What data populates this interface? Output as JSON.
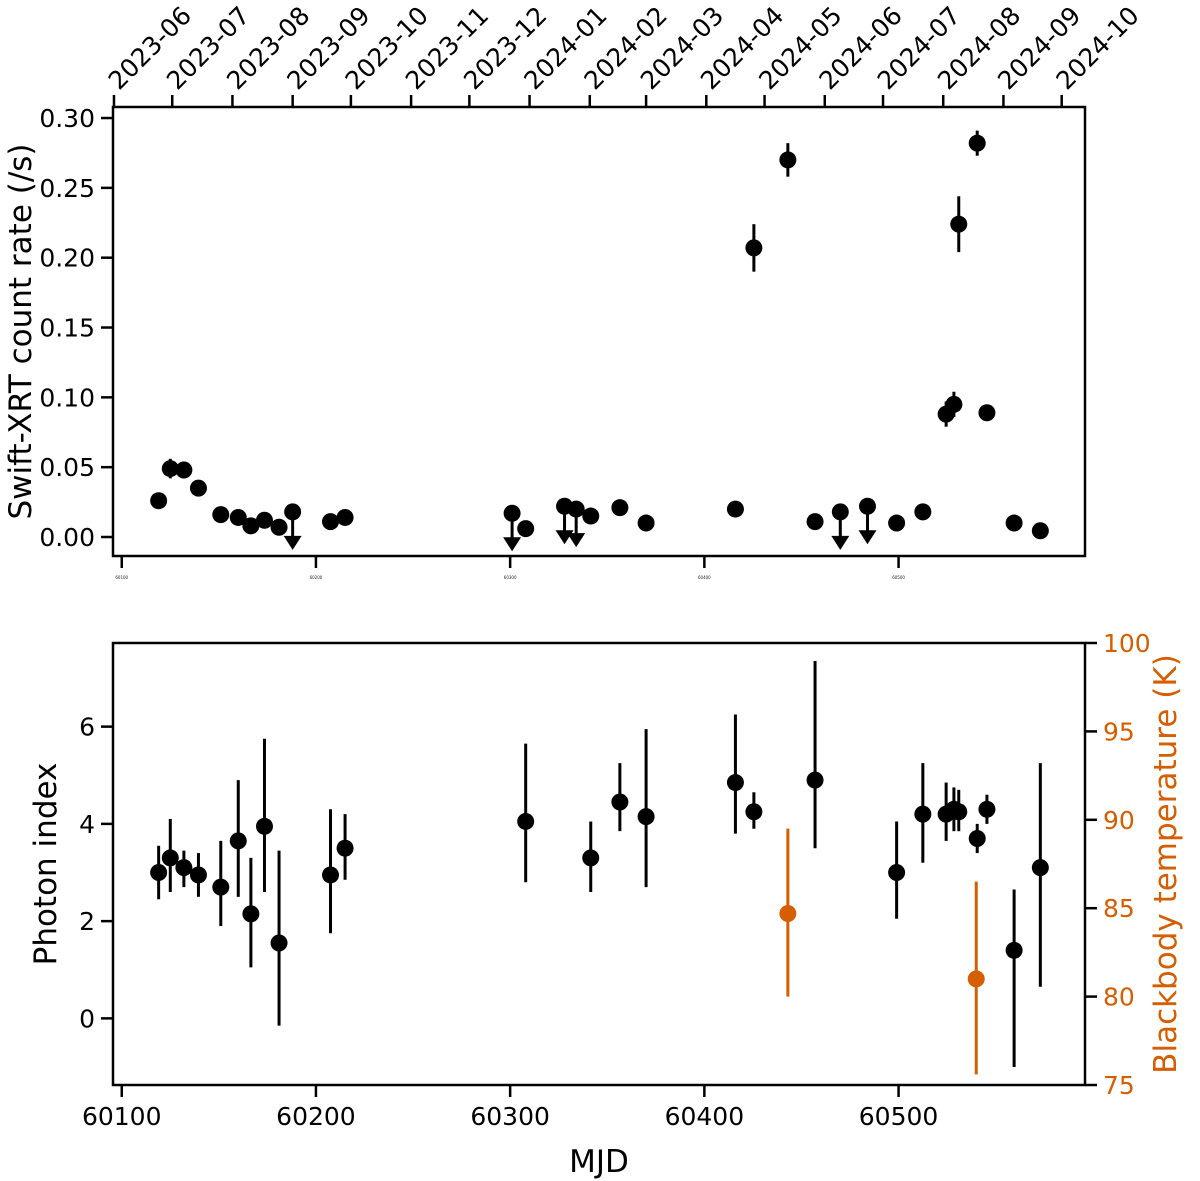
{
  "figure": {
    "background_color": "#ffffff",
    "accent_color": "#d55e00",
    "description": "Two-panel X-ray light curve and spectral evolution plot versus MJD"
  },
  "chart_data": [
    {
      "id": "count-rate-panel",
      "type": "scatter",
      "title": "",
      "ylabel": "Swift-XRT count rate (/s)",
      "grid": false,
      "xlim": [
        60095.5,
        60596
      ],
      "ylim": [
        -0.0136,
        0.3079
      ],
      "yticks": [
        0.0,
        0.05,
        0.1,
        0.15,
        0.2,
        0.25,
        0.3
      ],
      "ytick_labels": [
        "0.00",
        "0.05",
        "0.10",
        "0.15",
        "0.20",
        "0.25",
        "0.30"
      ],
      "xticks_bottom": [
        60100,
        60200,
        60300,
        60400,
        60500
      ],
      "xticks_bottom_tiny_labels": [
        "60100",
        "60200",
        "60300",
        "60400",
        "60500"
      ],
      "xticks_top": {
        "mjd": [
          60096,
          60126,
          60157,
          60188,
          60218,
          60249,
          60279,
          60310,
          60341,
          60370,
          60401,
          60431,
          60462,
          60492,
          60523,
          60554,
          60584
        ],
        "labels": [
          "2023-06",
          "2023-07",
          "2023-08",
          "2023-09",
          "2023-10",
          "2023-11",
          "2023-12",
          "2024-01",
          "2024-02",
          "2024-03",
          "2024-04",
          "2024-05",
          "2024-06",
          "2024-07",
          "2024-08",
          "2024-09",
          "2024-10"
        ]
      },
      "series": [
        {
          "name": "detections",
          "marker": "circle",
          "color": "#000000",
          "x": [
            60119,
            60125,
            60132,
            60139.5,
            60151,
            60160,
            60166.5,
            60173.5,
            60181,
            60207.5,
            60215,
            60308,
            60341.5,
            60356.5,
            60370,
            60416,
            60425.5,
            60443,
            60457,
            60499,
            60512.5,
            60524.5,
            60528.5,
            60531,
            60540.5,
            60545.5,
            60559.5,
            60573
          ],
          "y": [
            0.026,
            0.049,
            0.048,
            0.035,
            0.016,
            0.014,
            0.008,
            0.012,
            0.007,
            0.011,
            0.014,
            0.006,
            0.015,
            0.021,
            0.01,
            0.02,
            0.207,
            0.27,
            0.011,
            0.01,
            0.018,
            0.088,
            0.095,
            0.224,
            0.282,
            0.089,
            0.01,
            0.0045
          ],
          "yerr": [
            0.004,
            0.007,
            0.006,
            0.005,
            0.003,
            0.003,
            0.002,
            0.003,
            0.002,
            0.002,
            0.003,
            0.002,
            0.003,
            0.003,
            0.002,
            0.003,
            0.017,
            0.012,
            0.002,
            0.002,
            0.003,
            0.009,
            0.009,
            0.02,
            0.009,
            0.005,
            0.002,
            0.002
          ]
        },
        {
          "name": "upper-limits",
          "marker": "circle-down-arrow",
          "color": "#000000",
          "x": [
            60188,
            60301,
            60328,
            60334,
            60470,
            60484
          ],
          "y": [
            0.018,
            0.017,
            0.022,
            0.02,
            0.018,
            0.022
          ]
        }
      ]
    },
    {
      "id": "spectral-panel",
      "type": "scatter",
      "title": "",
      "xlabel": "MJD",
      "ylabel_left": "Photon index",
      "ylabel_right": "Blackbody temperature (K)",
      "right_axis_color": "#d55e00",
      "grid": false,
      "xlim": [
        60095.5,
        60596
      ],
      "ylim_left": [
        -1.37,
        7.72
      ],
      "ylim_right": [
        75,
        100
      ],
      "yticks_left": [
        0,
        2,
        4,
        6
      ],
      "ytick_labels_left": [
        "0",
        "2",
        "4",
        "6"
      ],
      "yticks_right": [
        75,
        80,
        85,
        90,
        95,
        100
      ],
      "ytick_labels_right": [
        "75",
        "80",
        "85",
        "90",
        "95",
        "100"
      ],
      "xticks_bottom": [
        60100,
        60200,
        60300,
        60400,
        60500
      ],
      "xtick_labels_bottom": [
        "60100",
        "60200",
        "60300",
        "60400",
        "60500"
      ],
      "series": [
        {
          "name": "photon-index",
          "axis": "left",
          "marker": "circle",
          "color": "#000000",
          "x": [
            60119,
            60125,
            60132,
            60139.5,
            60151,
            60160,
            60166.5,
            60173.5,
            60181,
            60207.5,
            60215,
            60308,
            60341.5,
            60356.5,
            60370,
            60416,
            60425.5,
            60457,
            60499,
            60512.5,
            60524.5,
            60528.5,
            60531,
            60540.5,
            60545.5,
            60559.5,
            60573
          ],
          "y": [
            3.0,
            3.3,
            3.1,
            2.95,
            2.7,
            3.65,
            2.15,
            3.95,
            1.55,
            2.95,
            3.5,
            4.05,
            3.3,
            4.45,
            4.15,
            4.85,
            4.25,
            4.9,
            3.0,
            4.2,
            4.2,
            4.3,
            4.25,
            3.7,
            4.3,
            1.4,
            3.1
          ],
          "yerr_plus": [
            0.55,
            0.8,
            0.35,
            0.45,
            0.95,
            1.25,
            1.15,
            1.8,
            1.9,
            1.35,
            0.7,
            1.6,
            0.75,
            0.8,
            1.8,
            1.4,
            0.4,
            2.45,
            1.05,
            1.05,
            0.65,
            0.45,
            0.45,
            0.3,
            0.3,
            1.25,
            2.15
          ],
          "yerr_minus": [
            0.55,
            0.7,
            0.4,
            0.45,
            0.8,
            1.15,
            1.1,
            1.35,
            1.7,
            1.2,
            0.65,
            1.25,
            0.7,
            0.6,
            1.45,
            1.05,
            0.35,
            1.4,
            0.95,
            1.0,
            0.55,
            0.45,
            0.4,
            0.3,
            0.3,
            2.4,
            2.45
          ]
        },
        {
          "name": "blackbody-temperature",
          "axis": "right",
          "marker": "circle",
          "color": "#d55e00",
          "x": [
            60443,
            60540
          ],
          "y": [
            84.7,
            81.0
          ],
          "yerr_plus": [
            4.8,
            5.5
          ],
          "yerr_minus": [
            4.7,
            5.4
          ]
        }
      ]
    }
  ]
}
